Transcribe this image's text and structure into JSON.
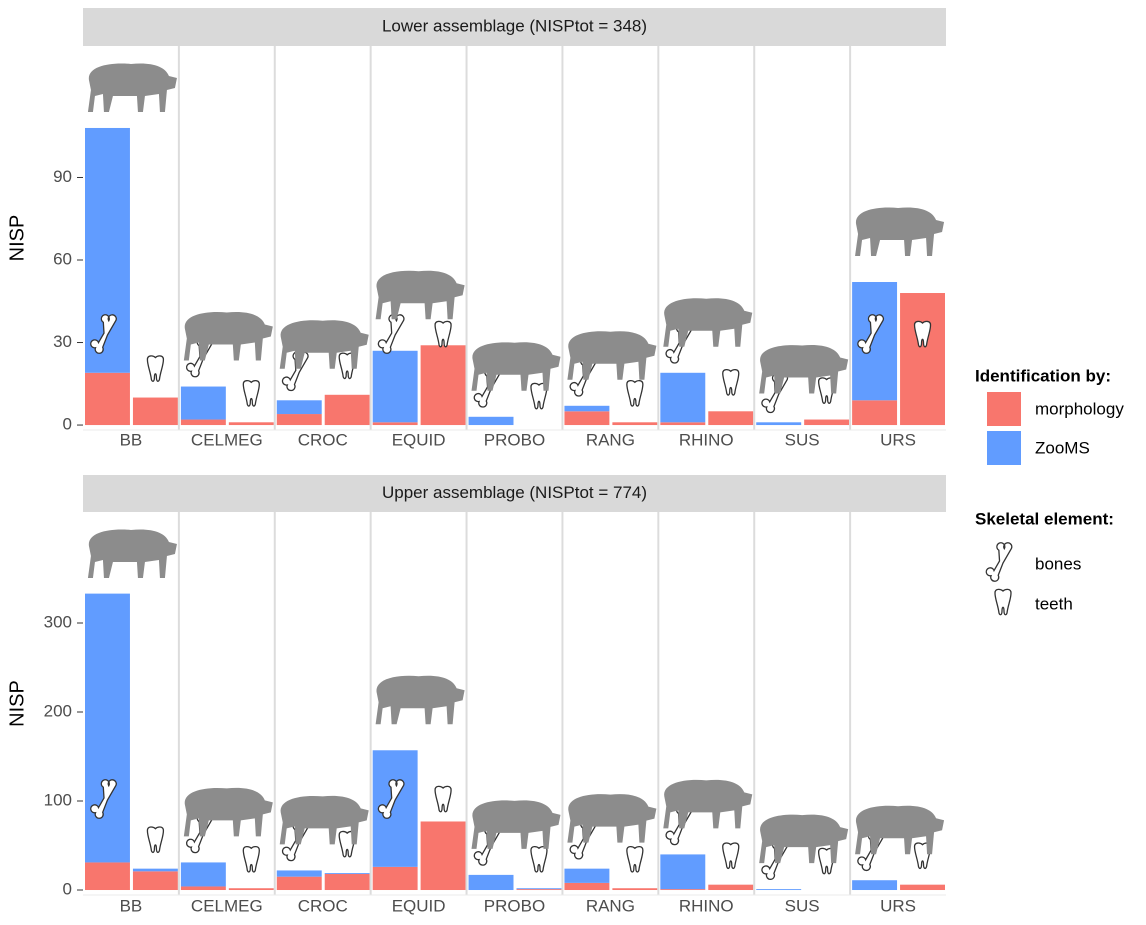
{
  "chart_data": [
    {
      "type": "bar",
      "stacked": true,
      "title": "Lower assemblage (NISPtot = 348)",
      "y_label": "NISP",
      "categories": [
        "BB",
        "CELMEG",
        "CROC",
        "EQUID",
        "PROBO",
        "RANG",
        "RHINO",
        "SUS",
        "URS"
      ],
      "bones": [
        [
          19,
          2,
          4,
          1,
          0,
          5,
          1,
          0,
          9
        ],
        [
          89,
          12,
          5,
          26,
          3,
          2,
          18,
          1,
          43
        ]
      ],
      "teeth": [
        [
          10,
          1,
          11,
          29,
          0,
          1,
          5,
          2,
          48
        ],
        [
          0,
          0,
          0,
          0,
          0,
          0,
          0,
          0,
          0
        ]
      ],
      "ylim": [
        -1.8,
        137.8
      ],
      "yticks": [
        0,
        30,
        60,
        90
      ]
    },
    {
      "type": "bar",
      "stacked": true,
      "title": "Upper assemblage (NISPtot = 774)",
      "y_label": "NISP",
      "categories": [
        "BB",
        "CELMEG",
        "CROC",
        "EQUID",
        "PROBO",
        "RANG",
        "RHINO",
        "SUS",
        "URS"
      ],
      "bones": [
        [
          31,
          4,
          15,
          26,
          0,
          8,
          1,
          0,
          0
        ],
        [
          302,
          27,
          7,
          131,
          17,
          16,
          39,
          1,
          11
        ]
      ],
      "teeth": [
        [
          21,
          2,
          18,
          77,
          1,
          2,
          6,
          0,
          6
        ],
        [
          3,
          0,
          1,
          0,
          1,
          0,
          0,
          0,
          0
        ]
      ],
      "ylim": [
        -5.6,
        424.7
      ],
      "yticks": [
        0,
        100,
        200,
        300
      ]
    }
  ],
  "legend": {
    "fill_title": "Identification by:",
    "fills": [
      {
        "name": "morphology",
        "color": "#F8766D"
      },
      {
        "name": "ZooMS",
        "color": "#619CFF"
      }
    ],
    "shape_title": "Skeletal element:",
    "shapes": [
      "bones",
      "teeth"
    ]
  }
}
